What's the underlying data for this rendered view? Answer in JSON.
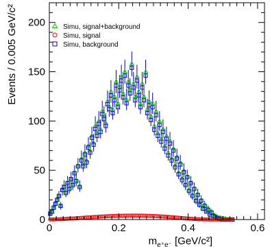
{
  "chart_data": {
    "type": "scatter",
    "xlabel": "m",
    "xlabel_sub": "e⁺e⁻",
    "xlabel_unit": "[GeV/c²]",
    "ylabel": "Events / 0.005 GeV/c²",
    "xlim": [
      0,
      0.62
    ],
    "ylim": [
      0,
      220
    ],
    "x_ticks": [
      0,
      0.2,
      0.4,
      0.6
    ],
    "x_tick_labels": [
      "0",
      "0.2",
      "0.4",
      "0.6"
    ],
    "y_ticks": [
      0,
      50,
      100,
      150,
      200
    ],
    "y_tick_labels": [
      "0",
      "50",
      "100",
      "150",
      "200"
    ],
    "legend_position": "top-left",
    "x": [
      0.0025,
      0.0075,
      0.0125,
      0.0175,
      0.0225,
      0.0275,
      0.0325,
      0.0375,
      0.0425,
      0.0475,
      0.0525,
      0.0575,
      0.0625,
      0.0675,
      0.0725,
      0.0775,
      0.0825,
      0.0875,
      0.0925,
      0.0975,
      0.1025,
      0.1075,
      0.1125,
      0.1175,
      0.1225,
      0.1275,
      0.1325,
      0.1375,
      0.1425,
      0.1475,
      0.1525,
      0.1575,
      0.1625,
      0.1675,
      0.1725,
      0.1775,
      0.1825,
      0.1875,
      0.1925,
      0.1975,
      0.2025,
      0.2075,
      0.2125,
      0.2175,
      0.2225,
      0.2275,
      0.2325,
      0.2375,
      0.2425,
      0.2475,
      0.2525,
      0.2575,
      0.2625,
      0.2675,
      0.2725,
      0.2775,
      0.2825,
      0.2875,
      0.2925,
      0.2975,
      0.3025,
      0.3075,
      0.3125,
      0.3175,
      0.3225,
      0.3275,
      0.3325,
      0.3375,
      0.3425,
      0.3475,
      0.3525,
      0.3575,
      0.3625,
      0.3675,
      0.3725,
      0.3775,
      0.3825,
      0.3875,
      0.3925,
      0.3975,
      0.4025,
      0.4075,
      0.4125,
      0.4175,
      0.4225,
      0.4275,
      0.4325,
      0.4375,
      0.4425,
      0.4475,
      0.4525,
      0.4575,
      0.4625,
      0.4675,
      0.4725,
      0.4775,
      0.4825,
      0.4875,
      0.4925,
      0.4975,
      0.5025,
      0.5075,
      0.5125,
      0.5175,
      0.5225,
      0.5275
    ],
    "series": [
      {
        "name": "Simu, signal+background",
        "marker": "triangle",
        "color": "#00cc00",
        "values": [
          6,
          8,
          12,
          16,
          20,
          24,
          14,
          30,
          34,
          28,
          38,
          32,
          42,
          36,
          48,
          40,
          55,
          34,
          62,
          56,
          68,
          60,
          75,
          70,
          85,
          78,
          95,
          88,
          100,
          92,
          110,
          105,
          98,
          120,
          115,
          130,
          112,
          125,
          140,
          118,
          135,
          145,
          128,
          150,
          122,
          140,
          132,
          158,
          138,
          125,
          145,
          130,
          118,
          138,
          125,
          150,
          112,
          120,
          105,
          118,
          95,
          110,
          88,
          100,
          82,
          92,
          75,
          85,
          68,
          80,
          62,
          72,
          55,
          64,
          48,
          58,
          42,
          50,
          36,
          44,
          30,
          38,
          25,
          32,
          20,
          26,
          16,
          20,
          12,
          15,
          9,
          11,
          6,
          8,
          5,
          4,
          3,
          2,
          2,
          1,
          1,
          1,
          0,
          0,
          0,
          0
        ]
      },
      {
        "name": "Simu, signal",
        "marker": "circle",
        "color": "#ff0000",
        "values": [
          0.05,
          0.1,
          0.15,
          0.2,
          0.3,
          0.35,
          0.4,
          0.5,
          0.6,
          0.7,
          0.8,
          0.9,
          1.0,
          1.1,
          1.2,
          1.3,
          1.45,
          1.55,
          1.7,
          1.8,
          1.95,
          2.05,
          2.2,
          2.3,
          2.45,
          2.55,
          2.7,
          2.8,
          2.9,
          3.0,
          3.1,
          3.2,
          3.3,
          3.4,
          3.5,
          3.55,
          3.6,
          3.7,
          3.75,
          3.8,
          3.85,
          3.9,
          3.9,
          3.95,
          4.0,
          4.0,
          4.0,
          4.0,
          4.05,
          4.05,
          4.05,
          4.0,
          4.0,
          4.0,
          3.95,
          3.9,
          3.85,
          3.8,
          3.75,
          3.7,
          3.6,
          3.5,
          3.4,
          3.3,
          3.2,
          3.1,
          3.0,
          2.9,
          2.75,
          2.6,
          2.45,
          2.3,
          2.15,
          2.0,
          1.85,
          1.7,
          1.55,
          1.4,
          1.25,
          1.1,
          0.95,
          0.8,
          0.7,
          0.6,
          0.5,
          0.4,
          0.3,
          0.25,
          0.2,
          0.15,
          0.1,
          0.08,
          0.06,
          0.05,
          0.04,
          0.03,
          0.02,
          0.02,
          0.01,
          0.01,
          0.01,
          0.01,
          0.0,
          0.0,
          0.0,
          0.0
        ]
      },
      {
        "name": "Simu, background",
        "marker": "square",
        "color": "#0000cc",
        "values": [
          6,
          8,
          12,
          16,
          20,
          24,
          14,
          30,
          33,
          27,
          37,
          31,
          41,
          35,
          47,
          39,
          54,
          33,
          60,
          54,
          66,
          58,
          73,
          68,
          83,
          76,
          92,
          85,
          97,
          89,
          107,
          102,
          95,
          117,
          112,
          126,
          108,
          121,
          136,
          114,
          131,
          141,
          124,
          146,
          118,
          136,
          128,
          154,
          134,
          121,
          141,
          126,
          114,
          134,
          121,
          146,
          108,
          116,
          101,
          114,
          91,
          106,
          85,
          96,
          79,
          89,
          72,
          82,
          65,
          77,
          60,
          70,
          53,
          62,
          46,
          56,
          40,
          48,
          35,
          43,
          29,
          37,
          24,
          31,
          19,
          25,
          15,
          19,
          11,
          14,
          8,
          10,
          5,
          7,
          4,
          3,
          2,
          1,
          1,
          0,
          0,
          0,
          0,
          0,
          0,
          0
        ]
      }
    ],
    "error_bars": "sqrt(N)"
  }
}
